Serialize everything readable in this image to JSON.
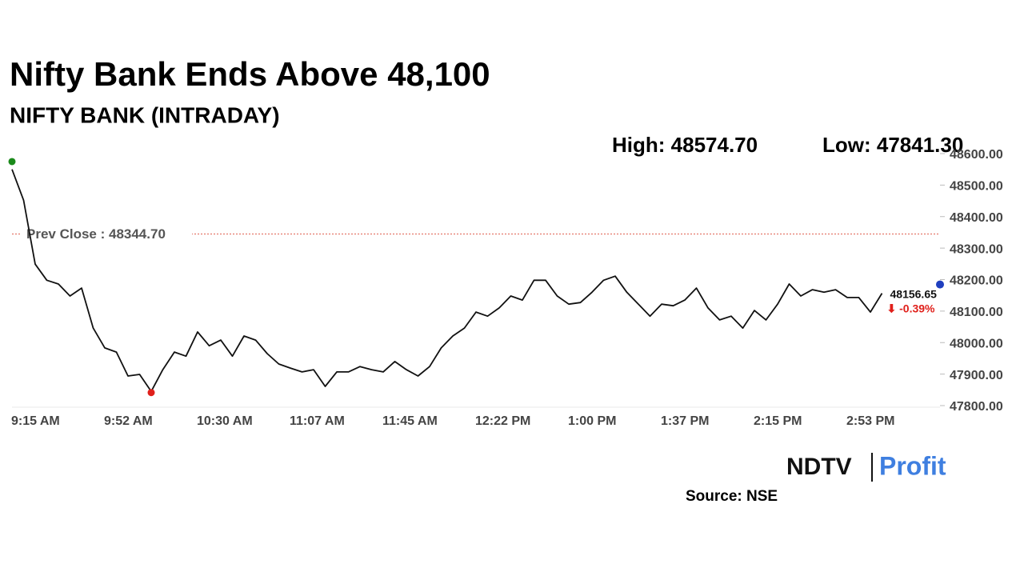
{
  "chart_data": {
    "type": "line",
    "title": "Nifty Bank Ends Above 48,100",
    "subtitle": "NIFTY BANK (INTRADAY)",
    "high": {
      "label": "High: 48574.70",
      "value": 48574.7,
      "color": "#1a8a1a"
    },
    "low": {
      "label": "Low: 47841.30",
      "value": 47841.3,
      "color": "#e0201b"
    },
    "prev_close": {
      "label": "Prev Close : 48344.70",
      "value": 48344.7,
      "color": "#e06050"
    },
    "categories": [
      "9:15 AM",
      null,
      null,
      null,
      null,
      null,
      null,
      null,
      "9:52 AM",
      null,
      null,
      null,
      null,
      null,
      null,
      null,
      "10:30 AM",
      null,
      null,
      null,
      null,
      null,
      null,
      null,
      "11:07 AM",
      null,
      null,
      null,
      null,
      null,
      null,
      null,
      "11:45 AM",
      null,
      null,
      null,
      null,
      null,
      null,
      null,
      "12:22 PM",
      null,
      null,
      null,
      null,
      null,
      null,
      null,
      "1:00 PM",
      null,
      null,
      null,
      null,
      null,
      null,
      null,
      "1:37 PM",
      null,
      null,
      null,
      null,
      null,
      null,
      null,
      "2:15 PM",
      null,
      null,
      null,
      null,
      null,
      null,
      null,
      "2:53 PM",
      null,
      null,
      null,
      null,
      null,
      null,
      null,
      null
    ],
    "series": [
      {
        "color": "#111111",
        "values": [
          48550,
          48452,
          48249,
          48198,
          48186,
          48148,
          48173,
          48046,
          47983,
          47970,
          47894,
          47899,
          47845,
          47914,
          47970,
          47957,
          48034,
          47990,
          48008,
          47957,
          48021,
          48008,
          47965,
          47932,
          47919,
          47907,
          47914,
          47861,
          47907,
          47907,
          47924,
          47914,
          47907,
          47940,
          47914,
          47894,
          47924,
          47983,
          48021,
          48046,
          48097,
          48084,
          48110,
          48148,
          48135,
          48198,
          48198,
          48148,
          48122,
          48127,
          48160,
          48198,
          48211,
          48160,
          48122,
          48084,
          48122,
          48117,
          48135,
          48173,
          48110,
          48072,
          48084,
          48046,
          48102,
          48072,
          48122,
          48186,
          48148,
          48168,
          48160,
          48168,
          48143,
          48143,
          48097,
          48156.65,
          null,
          null,
          null,
          null,
          null
        ]
      }
    ],
    "last_value_label": "48156.65",
    "change_label": "⬇ -0.39%",
    "change_color": "#e0201b",
    "last_marker_color": "#1f3fbf",
    "ylim": [
      47800,
      48600
    ],
    "yticks": [
      {
        "value": 47800,
        "label": "47800.00"
      },
      {
        "value": 47900,
        "label": "47900.00"
      },
      {
        "value": 48000,
        "label": "48000.00"
      },
      {
        "value": 48100,
        "label": "48100.00"
      },
      {
        "value": 48200,
        "label": "48200.00"
      },
      {
        "value": 48300,
        "label": "48300.00"
      },
      {
        "value": 48400,
        "label": "48400.00"
      },
      {
        "value": 48500,
        "label": "48500.00"
      },
      {
        "value": 48600,
        "label": "48600.00"
      }
    ],
    "logo": {
      "left": "NDTV",
      "right": "Profit"
    },
    "source": "Source: NSE"
  }
}
